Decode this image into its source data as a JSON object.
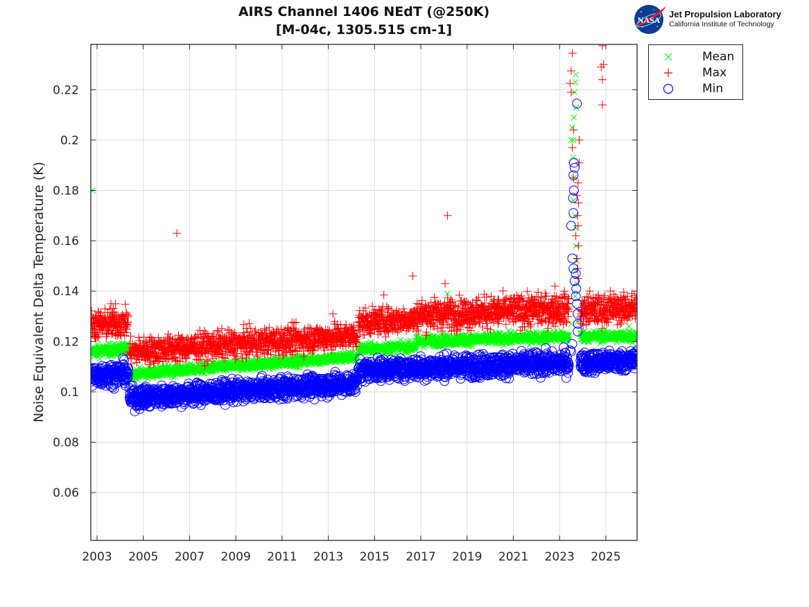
{
  "header": {
    "title_line1": "AIRS Channel 1406 NEdT (@250K)",
    "title_line2": "[M-04c, 1305.515 cm-1]"
  },
  "logo": {
    "emblem_text": "NASA",
    "line1": "Jet Propulsion Laboratory",
    "line2": "California Institute of Technology"
  },
  "chart_data": {
    "type": "scatter",
    "title": "AIRS Channel 1406 NEdT (@250K) [M-04c, 1305.515 cm-1]",
    "xlabel": "",
    "ylabel": "Noise Equivalent Delta Temperature (K)",
    "xlim": [
      2002.73,
      2026.35
    ],
    "ylim": [
      0.041,
      0.238
    ],
    "grid": true,
    "legend_position": "outside-top-right",
    "x_ticks": [
      2003,
      2005,
      2007,
      2009,
      2011,
      2013,
      2015,
      2017,
      2019,
      2021,
      2023,
      2025
    ],
    "x_tick_labels": [
      "2003",
      "2005",
      "2007",
      "2009",
      "2011",
      "2013",
      "2015",
      "2017",
      "2019",
      "2021",
      "2023",
      "2025"
    ],
    "y_ticks": [
      0.06,
      0.08,
      0.1,
      0.12,
      0.14,
      0.16,
      0.18,
      0.2,
      0.22
    ],
    "y_tick_labels": [
      "0.06",
      "0.08",
      "0.1",
      "0.12",
      "0.14",
      "0.16",
      "0.18",
      "0.2",
      "0.22"
    ],
    "series": [
      {
        "name": "Mean",
        "marker": "x",
        "color": "#00ff00",
        "segments": [
          {
            "x0": 2002.75,
            "x1": 2004.35,
            "y0": 0.116,
            "y1": 0.117,
            "spread": 0.0012
          },
          {
            "x0": 2004.4,
            "x1": 2014.25,
            "y0": 0.107,
            "y1": 0.114,
            "spread": 0.001
          },
          {
            "x0": 2014.3,
            "x1": 2016.8,
            "y0": 0.117,
            "y1": 0.118,
            "spread": 0.001
          },
          {
            "x0": 2016.8,
            "x1": 2023.4,
            "y0": 0.12,
            "y1": 0.122,
            "spread": 0.0011
          },
          {
            "x0": 2023.9,
            "x1": 2026.35,
            "y0": 0.122,
            "y1": 0.122,
            "spread": 0.0011
          }
        ],
        "outliers": [
          [
            2002.8,
            0.18
          ],
          [
            2023.5,
            0.2
          ],
          [
            2023.55,
            0.205
          ],
          [
            2023.6,
            0.2
          ],
          [
            2023.62,
            0.209
          ],
          [
            2023.65,
            0.219
          ],
          [
            2023.68,
            0.223
          ],
          [
            2023.7,
            0.226
          ],
          [
            2023.72,
            0.213
          ],
          [
            2023.6,
            0.193
          ],
          [
            2023.62,
            0.185
          ],
          [
            2023.6,
            0.176
          ],
          [
            2023.65,
            0.17
          ],
          [
            2023.7,
            0.165
          ],
          [
            2023.72,
            0.158
          ],
          [
            2023.75,
            0.152
          ],
          [
            2023.7,
            0.148
          ],
          [
            2023.75,
            0.143
          ],
          [
            2023.68,
            0.138
          ],
          [
            2023.72,
            0.133
          ],
          [
            2023.78,
            0.128
          ],
          [
            2023.5,
            0.127
          ],
          [
            2018.15,
            0.139
          ],
          [
            2026.0,
            0.126
          ]
        ]
      },
      {
        "name": "Max",
        "marker": "+",
        "color": "#ff0000",
        "segments": [
          {
            "x0": 2002.75,
            "x1": 2004.35,
            "y0": 0.1265,
            "y1": 0.1275,
            "spread": 0.0028
          },
          {
            "x0": 2004.4,
            "x1": 2014.25,
            "y0": 0.116,
            "y1": 0.1225,
            "spread": 0.0026
          },
          {
            "x0": 2014.3,
            "x1": 2016.8,
            "y0": 0.1275,
            "y1": 0.129,
            "spread": 0.0025
          },
          {
            "x0": 2016.8,
            "x1": 2023.4,
            "y0": 0.1305,
            "y1": 0.133,
            "spread": 0.003
          },
          {
            "x0": 2023.9,
            "x1": 2026.35,
            "y0": 0.132,
            "y1": 0.1335,
            "spread": 0.0028
          }
        ],
        "outliers": [
          [
            2003.6,
            0.135
          ],
          [
            2003.8,
            0.135
          ],
          [
            2006.45,
            0.163
          ],
          [
            2016.65,
            0.146
          ],
          [
            2018.05,
            0.143
          ],
          [
            2018.15,
            0.17
          ],
          [
            2022.8,
            0.142
          ],
          [
            2024.85,
            0.2375
          ],
          [
            2024.9,
            0.23
          ],
          [
            2024.8,
            0.229
          ],
          [
            2024.85,
            0.224
          ],
          [
            2024.85,
            0.214
          ],
          [
            2023.55,
            0.2345
          ],
          [
            2023.5,
            0.2275
          ],
          [
            2023.45,
            0.2225
          ],
          [
            2023.5,
            0.219
          ],
          [
            2023.85,
            0.2
          ],
          [
            2023.6,
            0.204
          ],
          [
            2023.55,
            0.197
          ],
          [
            2023.85,
            0.191
          ],
          [
            2023.6,
            0.185
          ],
          [
            2023.8,
            0.183
          ],
          [
            2023.75,
            0.178
          ],
          [
            2023.82,
            0.175
          ],
          [
            2023.78,
            0.17
          ],
          [
            2023.8,
            0.166
          ],
          [
            2023.7,
            0.162
          ],
          [
            2023.82,
            0.158
          ],
          [
            2023.75,
            0.153
          ],
          [
            2023.78,
            0.149
          ],
          [
            2023.8,
            0.145
          ],
          [
            2024.3,
            0.14
          ],
          [
            2025.2,
            0.14
          ],
          [
            2015.4,
            0.1385
          ],
          [
            2013.2,
            0.131
          ]
        ]
      },
      {
        "name": "Min",
        "marker": "o",
        "color": "#0000ff",
        "segments": [
          {
            "x0": 2002.75,
            "x1": 2004.35,
            "y0": 0.1065,
            "y1": 0.1075,
            "spread": 0.0022
          },
          {
            "x0": 2004.4,
            "x1": 2014.25,
            "y0": 0.0975,
            "y1": 0.1035,
            "spread": 0.002
          },
          {
            "x0": 2014.3,
            "x1": 2016.8,
            "y0": 0.1085,
            "y1": 0.1095,
            "spread": 0.002
          },
          {
            "x0": 2016.8,
            "x1": 2023.4,
            "y0": 0.1095,
            "y1": 0.1115,
            "spread": 0.0022
          },
          {
            "x0": 2023.9,
            "x1": 2026.35,
            "y0": 0.1115,
            "y1": 0.1125,
            "spread": 0.002
          }
        ],
        "outliers": [
          [
            2023.75,
            0.2145
          ],
          [
            2023.62,
            0.191
          ],
          [
            2023.65,
            0.189
          ],
          [
            2023.6,
            0.186
          ],
          [
            2023.62,
            0.18
          ],
          [
            2023.58,
            0.177
          ],
          [
            2023.6,
            0.171
          ],
          [
            2023.5,
            0.166
          ],
          [
            2023.55,
            0.153
          ],
          [
            2023.6,
            0.149
          ],
          [
            2023.7,
            0.147
          ],
          [
            2023.65,
            0.144
          ],
          [
            2023.72,
            0.141
          ],
          [
            2023.7,
            0.138
          ],
          [
            2023.75,
            0.135
          ],
          [
            2023.78,
            0.131
          ],
          [
            2023.8,
            0.127
          ],
          [
            2023.78,
            0.124
          ],
          [
            2023.55,
            0.119
          ],
          [
            2023.5,
            0.116
          ],
          [
            2012.4,
            0.097
          ],
          [
            2023.45,
            0.1165
          ]
        ]
      }
    ]
  }
}
